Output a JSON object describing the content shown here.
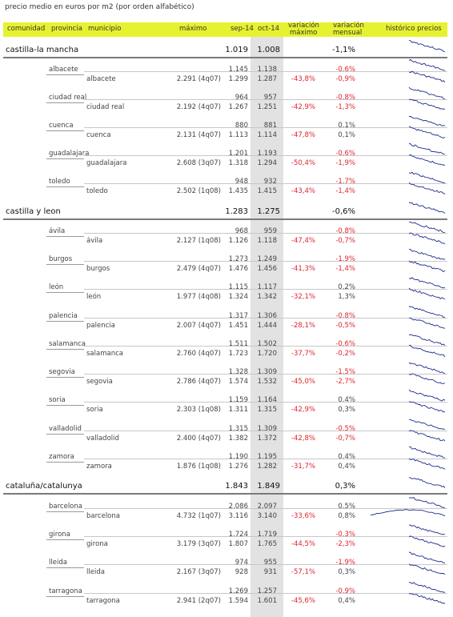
{
  "caption": "precio medio en euros por m2 (por orden alfabético)",
  "headers": {
    "comunidad": "comunidad",
    "provincia": "provincia",
    "municipio": "municipio",
    "maximo": "máximo",
    "sep": "sep-14",
    "oct": "oct-14",
    "var_max_1": "variación",
    "var_max_2": "máximo",
    "var_men_1": "variación",
    "var_men_2": "mensual",
    "historico": "histórico precios"
  },
  "rows": [
    {
      "type": "c",
      "name": "castilla-la mancha",
      "sep": "1.019",
      "oct": "1.008",
      "vmen": "-1,1%"
    },
    {
      "type": "p",
      "name": "albacete",
      "sep": "1.145",
      "oct": "1.138",
      "vmen": "-0,6%"
    },
    {
      "type": "m",
      "name": "albacete",
      "max": "2.291 (4q07)",
      "sep": "1.299",
      "oct": "1.287",
      "vmax": "-43,8%",
      "vmen": "-0,9%"
    },
    {
      "type": "p",
      "name": "ciudad real",
      "sep": "964",
      "oct": "957",
      "vmen": "-0,8%"
    },
    {
      "type": "m",
      "name": "ciudad real",
      "max": "2.192 (4q07)",
      "sep": "1.267",
      "oct": "1.251",
      "vmax": "-42,9%",
      "vmen": "-1,3%"
    },
    {
      "type": "p",
      "name": "cuenca",
      "sep": "880",
      "oct": "881",
      "vmen": "0,1%"
    },
    {
      "type": "m",
      "name": "cuenca",
      "max": "2.131 (4q07)",
      "sep": "1.113",
      "oct": "1.114",
      "vmax": "-47,8%",
      "vmen": "0,1%"
    },
    {
      "type": "p",
      "name": "guadalajara",
      "sep": "1.201",
      "oct": "1.193",
      "vmen": "-0,6%"
    },
    {
      "type": "m",
      "name": "guadalajara",
      "max": "2.608 (3q07)",
      "sep": "1.318",
      "oct": "1.294",
      "vmax": "-50,4%",
      "vmen": "-1,9%"
    },
    {
      "type": "p",
      "name": "toledo",
      "sep": "948",
      "oct": "932",
      "vmen": "-1,7%"
    },
    {
      "type": "m",
      "name": "toledo",
      "max": "2.502 (1q08)",
      "sep": "1.435",
      "oct": "1.415",
      "vmax": "-43,4%",
      "vmen": "-1,4%"
    },
    {
      "type": "c",
      "name": "castilla y leon",
      "sep": "1.283",
      "oct": "1.275",
      "vmen": "-0,6%"
    },
    {
      "type": "p",
      "name": "ávila",
      "sep": "968",
      "oct": "959",
      "vmen": "-0,8%"
    },
    {
      "type": "m",
      "name": "ávila",
      "max": "2.127 (1q08)",
      "sep": "1.126",
      "oct": "1.118",
      "vmax": "-47,4%",
      "vmen": "-0,7%"
    },
    {
      "type": "p",
      "name": "burgos",
      "sep": "1.273",
      "oct": "1.249",
      "vmen": "-1,9%"
    },
    {
      "type": "m",
      "name": "burgos",
      "max": "2.479 (4q07)",
      "sep": "1.476",
      "oct": "1.456",
      "vmax": "-41,3%",
      "vmen": "-1,4%"
    },
    {
      "type": "p",
      "name": "león",
      "sep": "1.115",
      "oct": "1.117",
      "vmen": "0,2%"
    },
    {
      "type": "m",
      "name": "león",
      "max": "1.977 (4q08)",
      "sep": "1.324",
      "oct": "1.342",
      "vmax": "-32,1%",
      "vmen": "1,3%"
    },
    {
      "type": "p",
      "name": "palencia",
      "sep": "1.317",
      "oct": "1.306",
      "vmen": "-0,8%"
    },
    {
      "type": "m",
      "name": "palencia",
      "max": "2.007 (4q07)",
      "sep": "1.451",
      "oct": "1.444",
      "vmax": "-28,1%",
      "vmen": "-0,5%"
    },
    {
      "type": "p",
      "name": "salamanca",
      "sep": "1.511",
      "oct": "1.502",
      "vmen": "-0,6%"
    },
    {
      "type": "m",
      "name": "salamanca",
      "max": "2.760 (4q07)",
      "sep": "1.723",
      "oct": "1.720",
      "vmax": "-37,7%",
      "vmen": "-0,2%"
    },
    {
      "type": "p",
      "name": "segovia",
      "sep": "1.328",
      "oct": "1.309",
      "vmen": "-1,5%"
    },
    {
      "type": "m",
      "name": "segovia",
      "max": "2.786 (4q07)",
      "sep": "1.574",
      "oct": "1.532",
      "vmax": "-45,0%",
      "vmen": "-2,7%"
    },
    {
      "type": "p",
      "name": "soria",
      "sep": "1.159",
      "oct": "1.164",
      "vmen": "0,4%"
    },
    {
      "type": "m",
      "name": "soria",
      "max": "2.303 (1q08)",
      "sep": "1.311",
      "oct": "1.315",
      "vmax": "-42,9%",
      "vmen": "0,3%"
    },
    {
      "type": "p",
      "name": "valladolid",
      "sep": "1.315",
      "oct": "1.309",
      "vmen": "-0,5%"
    },
    {
      "type": "m",
      "name": "valladolid",
      "max": "2.400 (4q07)",
      "sep": "1.382",
      "oct": "1.372",
      "vmax": "-42,8%",
      "vmen": "-0,7%"
    },
    {
      "type": "p",
      "name": "zamora",
      "sep": "1.190",
      "oct": "1.195",
      "vmen": "0,4%"
    },
    {
      "type": "m",
      "name": "zamora",
      "max": "1.876 (1q08)",
      "sep": "1.276",
      "oct": "1.282",
      "vmax": "-31,7%",
      "vmen": "0,4%"
    },
    {
      "type": "c",
      "name": "cataluña/catalunya",
      "sep": "1.843",
      "oct": "1.849",
      "vmen": "0,3%"
    },
    {
      "type": "p",
      "name": "barcelona",
      "sep": "2.086",
      "oct": "2.097",
      "vmen": "0,5%"
    },
    {
      "type": "m",
      "name": "barcelona",
      "max": "4.732 (1q07)",
      "sep": "3.116",
      "oct": "3.140",
      "vmax": "-33,6%",
      "vmen": "0,8%"
    },
    {
      "type": "p",
      "name": "girona",
      "sep": "1.724",
      "oct": "1.719",
      "vmen": "-0,3%"
    },
    {
      "type": "m",
      "name": "girona",
      "max": "3.179 (3q07)",
      "sep": "1.807",
      "oct": "1.765",
      "vmax": "-44,5%",
      "vmen": "-2,3%"
    },
    {
      "type": "p",
      "name": "lleida",
      "sep": "974",
      "oct": "955",
      "vmen": "-1,9%"
    },
    {
      "type": "m",
      "name": "lleida",
      "max": "2.167 (3q07)",
      "sep": "928",
      "oct": "931",
      "vmax": "-57,1%",
      "vmen": "0,3%"
    },
    {
      "type": "p",
      "name": "tarragona",
      "sep": "1.269",
      "oct": "1.257",
      "vmen": "-0,9%"
    },
    {
      "type": "m",
      "name": "tarragona",
      "max": "2.941 (2q07)",
      "sep": "1.594",
      "oct": "1.601",
      "vmax": "-45,6%",
      "vmen": "0,4%"
    }
  ],
  "colors": {
    "header_bg": "#e6f22f",
    "negative": "#e0232e",
    "sparkline": "#1a2a8a",
    "highlight_col": "#e2e2e2"
  }
}
